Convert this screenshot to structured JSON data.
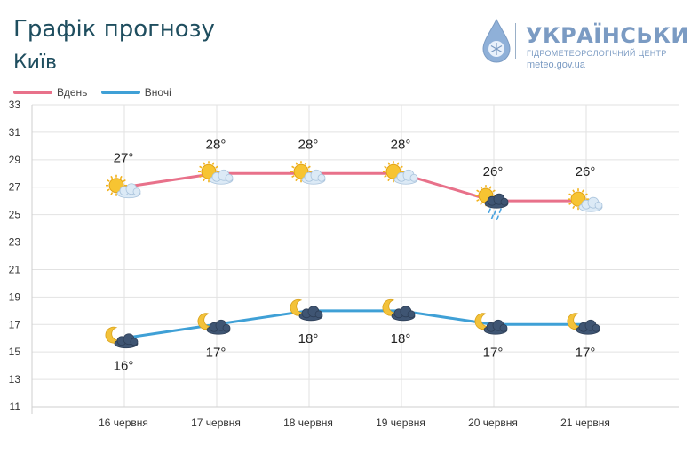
{
  "header": {
    "title": "Графік прогнозу",
    "city": "Київ"
  },
  "logo": {
    "name": "УКРАЇНСЬКИЙ",
    "subtitle": "ГІДРОМЕТЕОРОЛОГІЧНИЙ ЦЕНТР",
    "url": "meteo.gov.ua",
    "color": "#7b9bc3"
  },
  "colors": {
    "day": "#e8718a",
    "night": "#3fa0d6",
    "grid": "#e2e2e2",
    "title": "#1f4e5f"
  },
  "chart_data": {
    "type": "line",
    "categories": [
      "16 червня",
      "17 червня",
      "18 червня",
      "19 червня",
      "20 червня",
      "21 червня"
    ],
    "series": [
      {
        "name": "Вдень",
        "values": [
          27,
          28,
          28,
          28,
          26,
          26
        ],
        "labels": [
          "27°",
          "28°",
          "28°",
          "28°",
          "26°",
          "26°"
        ],
        "icons": [
          "sun-cloud-icon",
          "sun-cloud-icon",
          "sun-cloud-icon",
          "sun-cloud-icon",
          "sun-rain-cloud-icon",
          "sun-cloud-icon"
        ]
      },
      {
        "name": "Вночі",
        "values": [
          16,
          17,
          18,
          18,
          17,
          17
        ],
        "labels": [
          "16°",
          "17°",
          "18°",
          "18°",
          "17°",
          "17°"
        ],
        "icons": [
          "moon-cloud-icon",
          "moon-cloud-icon",
          "moon-cloud-icon",
          "moon-cloud-icon",
          "moon-cloud-icon",
          "moon-cloud-icon"
        ]
      }
    ],
    "yticks": [
      11,
      13,
      15,
      17,
      19,
      21,
      23,
      25,
      27,
      29,
      31,
      33
    ],
    "ylim": [
      11,
      33
    ],
    "grid": true,
    "legend": "top-left"
  }
}
